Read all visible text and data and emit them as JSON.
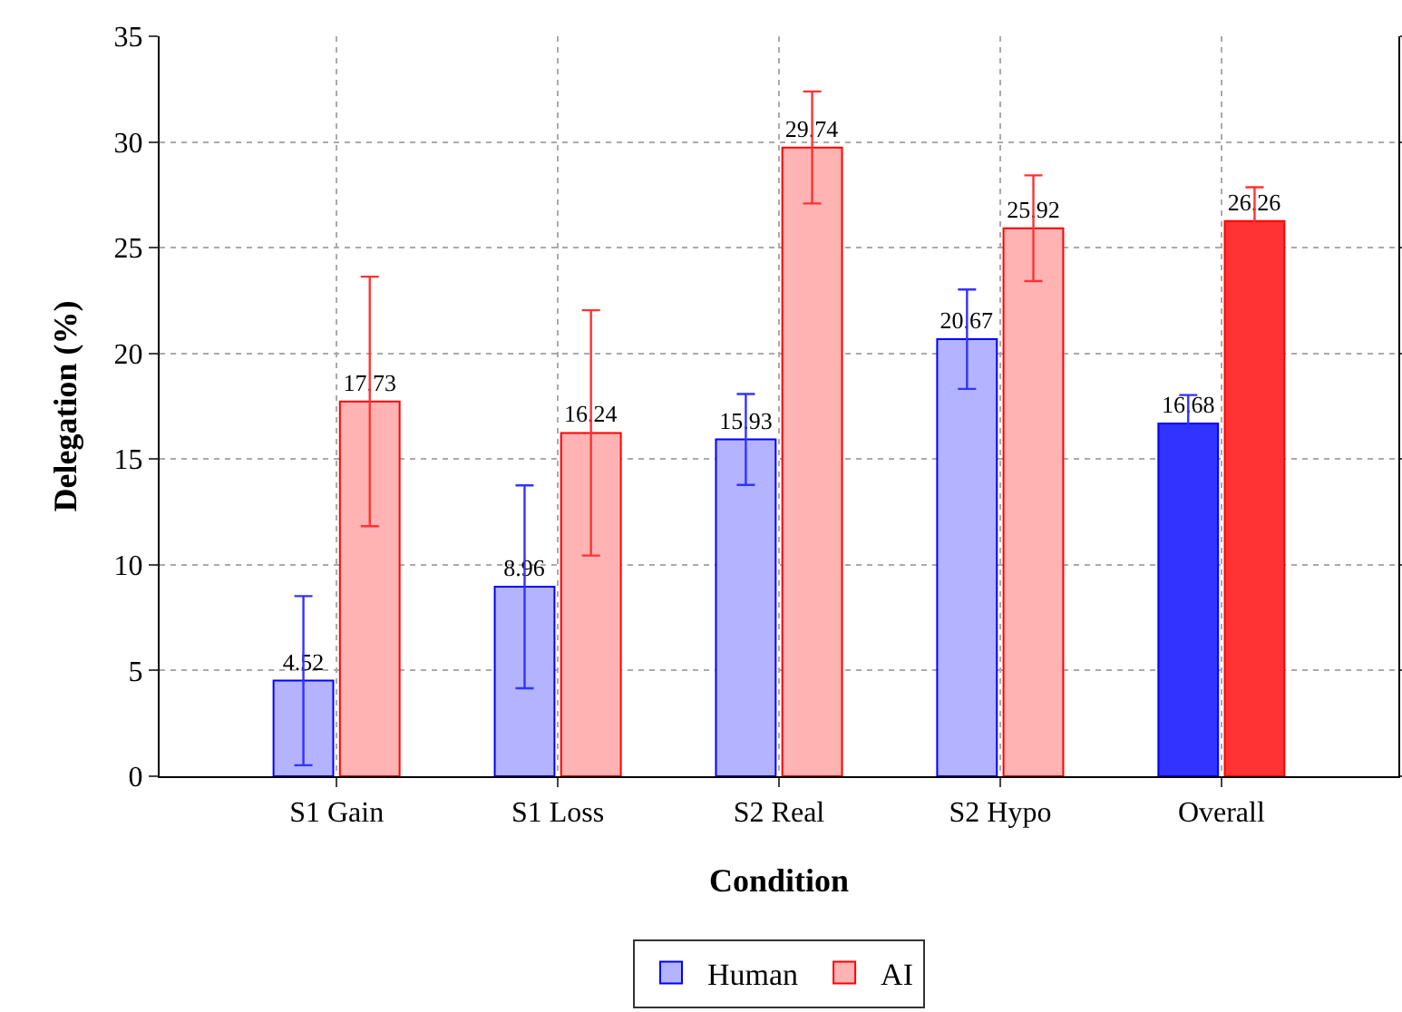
{
  "chart_data": {
    "type": "bar",
    "xlabel": "Condition",
    "ylabel": "Delegation (%)",
    "categories": [
      "S1 Gain",
      "S1 Loss",
      "S2 Real",
      "S2 Hypo",
      "Overall"
    ],
    "series": [
      {
        "name": "Human",
        "colors": [
          "#b3b3ff",
          "#b3b3ff",
          "#b3b3ff",
          "#b3b3ff",
          "#3333ff"
        ],
        "values": [
          4.52,
          8.96,
          15.93,
          20.67,
          16.68
        ],
        "errors": [
          4.0,
          4.8,
          2.15,
          2.35,
          1.35
        ]
      },
      {
        "name": "AI",
        "colors": [
          "#ffb3b3",
          "#ffb3b3",
          "#ffb3b3",
          "#ffb3b3",
          "#ff3333"
        ],
        "values": [
          17.73,
          16.24,
          29.74,
          25.92,
          26.26
        ],
        "errors": [
          5.9,
          5.8,
          2.65,
          2.5,
          1.6
        ]
      }
    ],
    "ylim": [
      0,
      35
    ],
    "yticks": [
      0,
      5,
      10,
      15,
      20,
      25,
      30,
      35
    ],
    "grid": true,
    "legend": "bottom",
    "data_labels": true
  }
}
